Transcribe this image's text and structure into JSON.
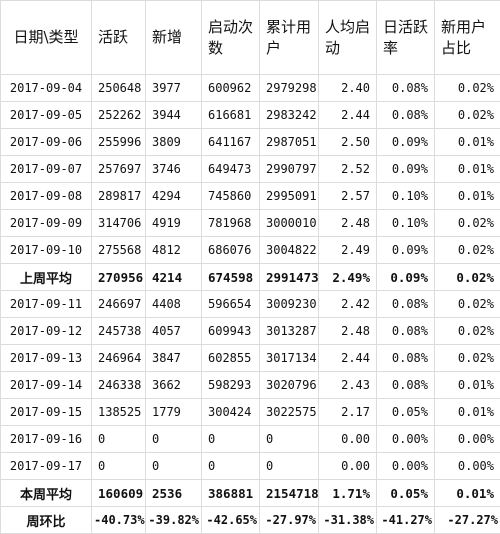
{
  "headers": [
    "日期\\类型",
    "活跃",
    "新增",
    "启动次数",
    "累计用户",
    "人均启动",
    "日活跃率",
    "新用户占比"
  ],
  "rows": [
    [
      "2017-09-04",
      "250648",
      "3977",
      "600962",
      "2979298",
      "2.40",
      "0.08%",
      "0.02%"
    ],
    [
      "2017-09-05",
      "252262",
      "3944",
      "616681",
      "2983242",
      "2.44",
      "0.08%",
      "0.02%"
    ],
    [
      "2017-09-06",
      "255996",
      "3809",
      "641167",
      "2987051",
      "2.50",
      "0.09%",
      "0.01%"
    ],
    [
      "2017-09-07",
      "257697",
      "3746",
      "649473",
      "2990797",
      "2.52",
      "0.09%",
      "0.01%"
    ],
    [
      "2017-09-08",
      "289817",
      "4294",
      "745860",
      "2995091",
      "2.57",
      "0.10%",
      "0.01%"
    ],
    [
      "2017-09-09",
      "314706",
      "4919",
      "781968",
      "3000010",
      "2.48",
      "0.10%",
      "0.02%"
    ],
    [
      "2017-09-10",
      "275568",
      "4812",
      "686076",
      "3004822",
      "2.49",
      "0.09%",
      "0.02%"
    ]
  ],
  "last_week_avg": [
    "上周平均",
    "270956",
    "4214",
    "674598",
    "2991473",
    "2.49%",
    "0.09%",
    "0.02%"
  ],
  "rows2": [
    [
      "2017-09-11",
      "246697",
      "4408",
      "596654",
      "3009230",
      "2.42",
      "0.08%",
      "0.02%"
    ],
    [
      "2017-09-12",
      "245738",
      "4057",
      "609943",
      "3013287",
      "2.48",
      "0.08%",
      "0.02%"
    ],
    [
      "2017-09-13",
      "246964",
      "3847",
      "602855",
      "3017134",
      "2.44",
      "0.08%",
      "0.02%"
    ],
    [
      "2017-09-14",
      "246338",
      "3662",
      "598293",
      "3020796",
      "2.43",
      "0.08%",
      "0.01%"
    ],
    [
      "2017-09-15",
      "138525",
      "1779",
      "300424",
      "3022575",
      "2.17",
      "0.05%",
      "0.01%"
    ],
    [
      "2017-09-16",
      "0",
      "0",
      "0",
      "0",
      "0.00",
      "0.00%",
      "0.00%"
    ],
    [
      "2017-09-17",
      "0",
      "0",
      "0",
      "0",
      "0.00",
      "0.00%",
      "0.00%"
    ]
  ],
  "this_week_avg": [
    "本周平均",
    "160609",
    "2536",
    "386881",
    "2154718",
    "1.71%",
    "0.05%",
    "0.01%"
  ],
  "wow": [
    "周环比",
    "-40.73%",
    "-39.82%",
    "-42.65%",
    "-27.97%",
    "-31.38%",
    "-41.27%",
    "-27.27%"
  ]
}
